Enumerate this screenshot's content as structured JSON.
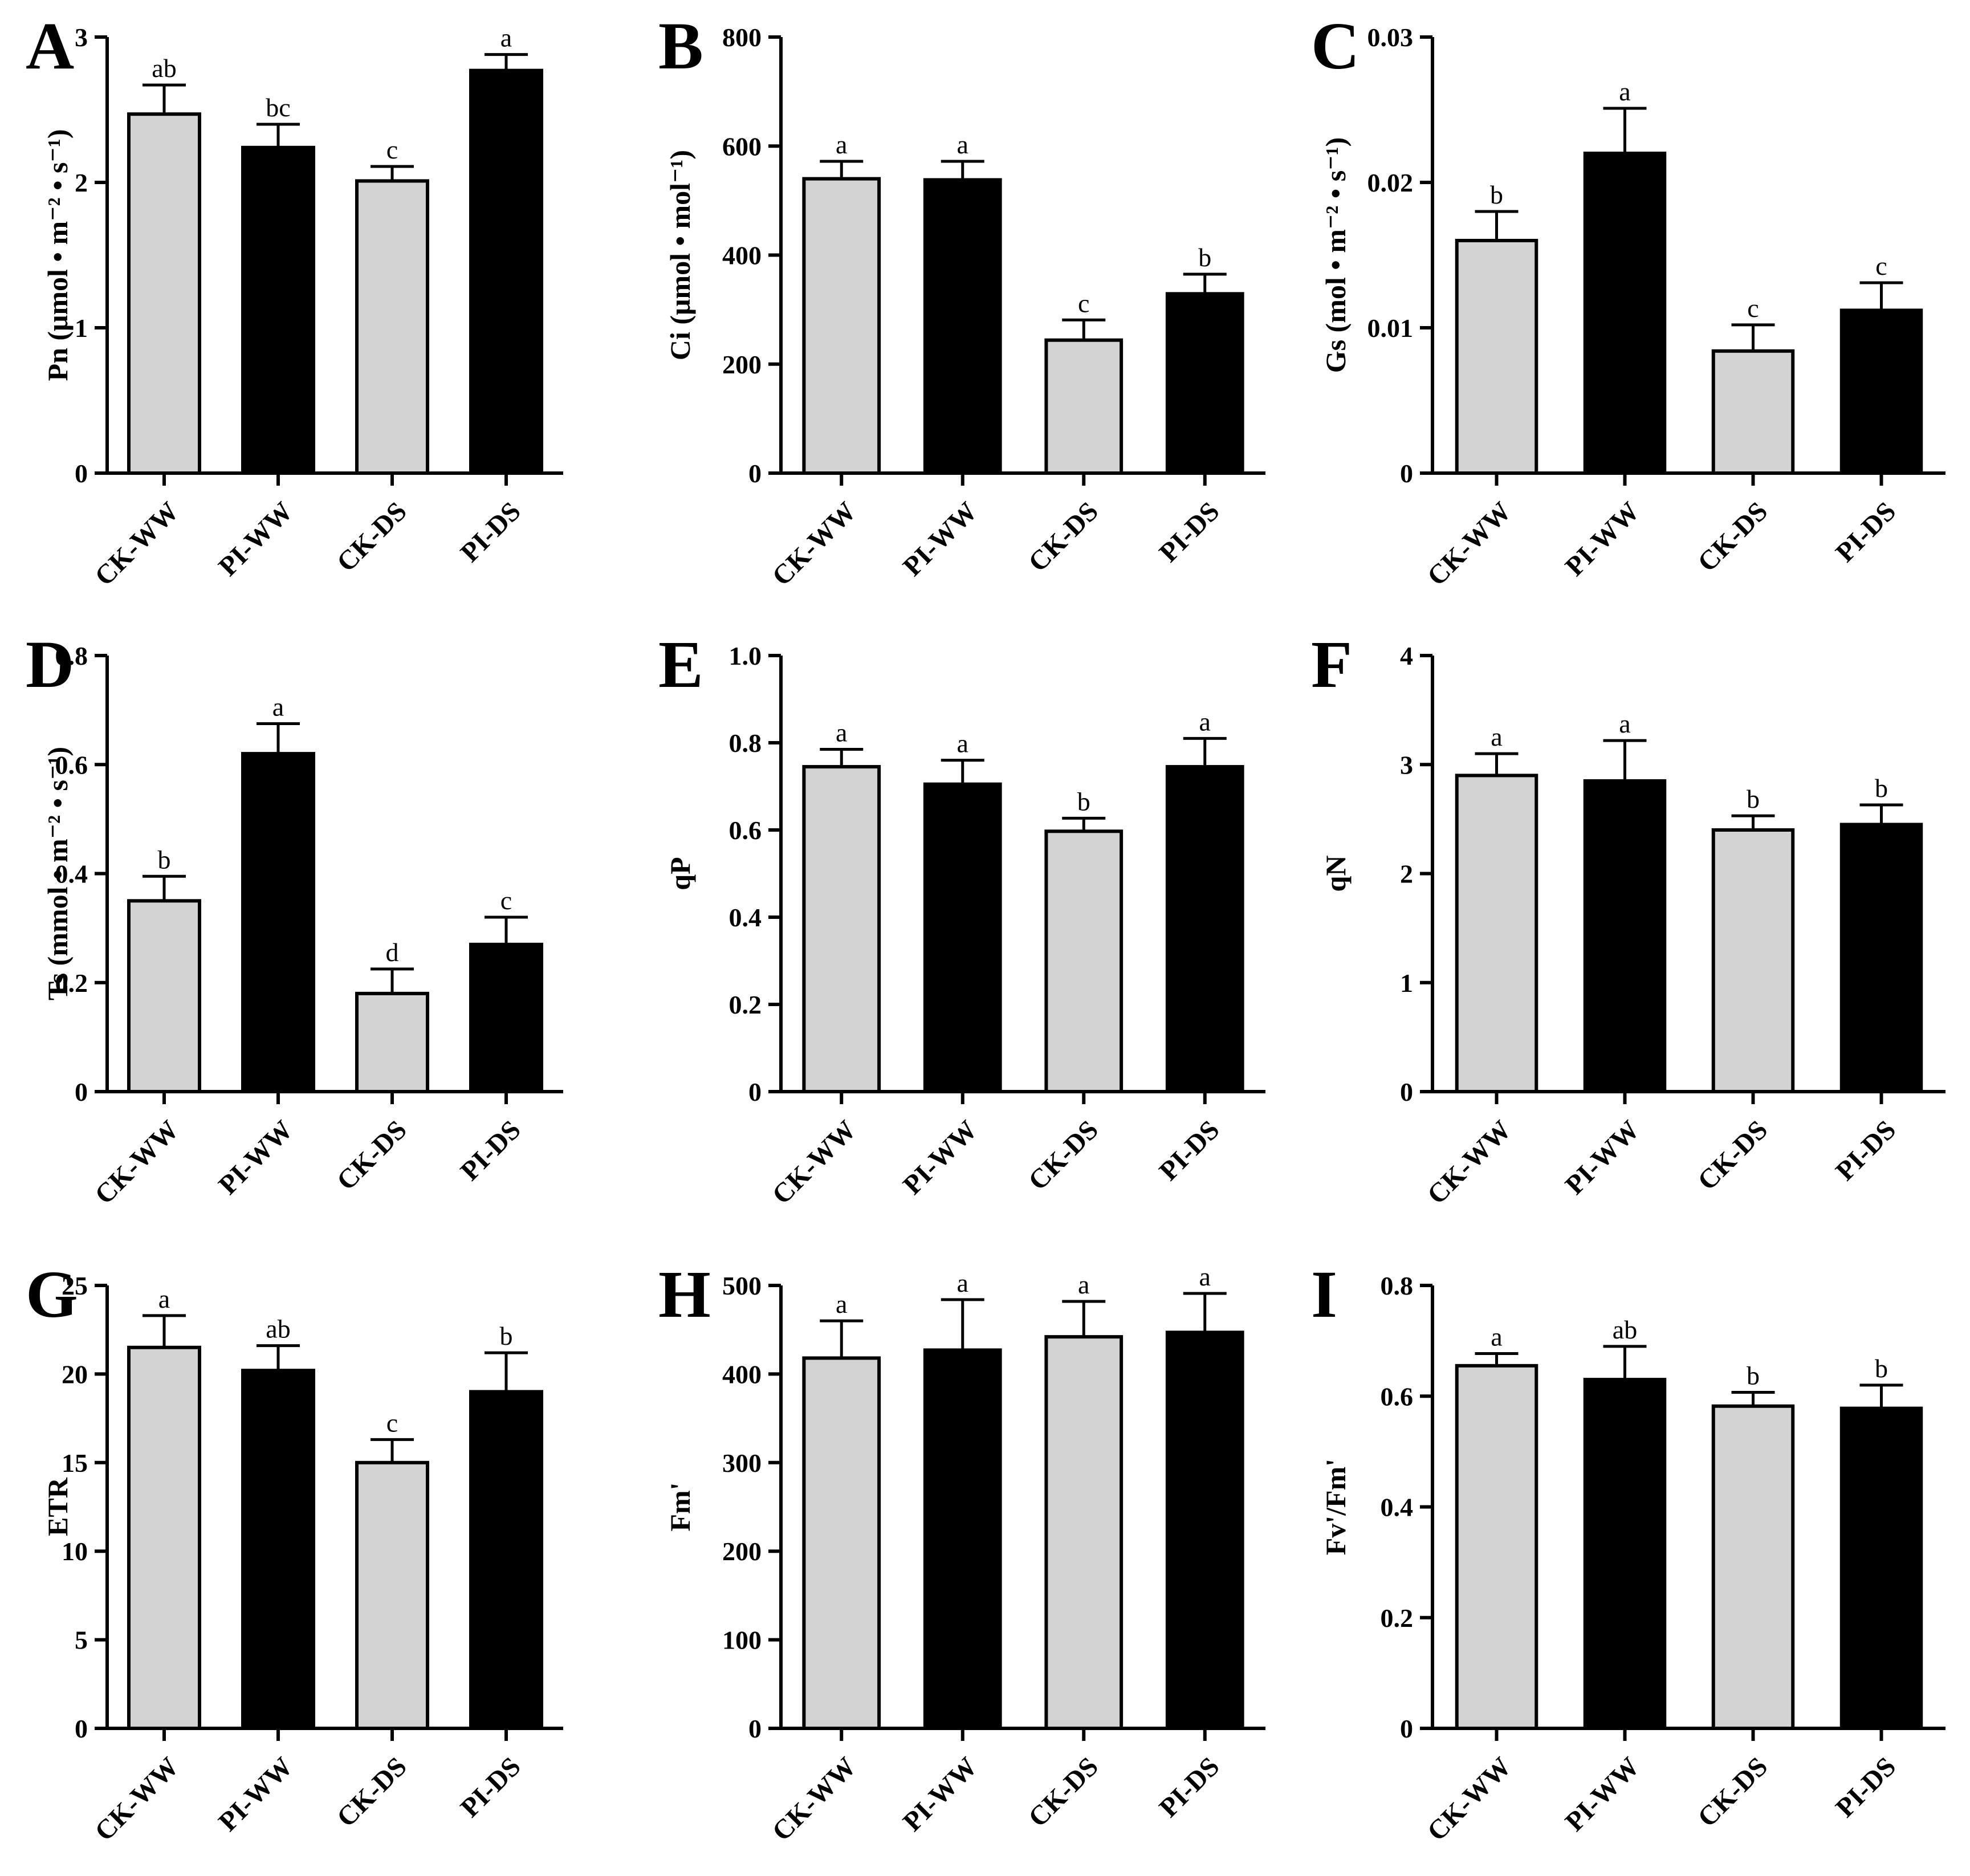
{
  "chart_data": [
    {
      "type": "bar",
      "panel_label": "A",
      "ylabel": "Pn (μmol • m⁻² • s⁻¹)",
      "categories": [
        "CK-WW",
        "PI-WW",
        "CK-DS",
        "PI-DS"
      ],
      "values": [
        2.47,
        2.24,
        2.01,
        2.77
      ],
      "errors": [
        0.2,
        0.16,
        0.1,
        0.11
      ],
      "letters": [
        "ab",
        "bc",
        "c",
        "a"
      ],
      "ylim": [
        0,
        3
      ],
      "yticks": [
        0,
        1,
        2,
        3
      ],
      "ytick_labels": [
        "0",
        "1",
        "2",
        "3"
      ]
    },
    {
      "type": "bar",
      "panel_label": "B",
      "ylabel": "Ci (μmol • mol⁻¹)",
      "categories": [
        "CK-WW",
        "PI-WW",
        "CK-DS",
        "PI-DS"
      ],
      "values": [
        540,
        538,
        244,
        329
      ],
      "errors": [
        32,
        34,
        37,
        36
      ],
      "letters": [
        "a",
        "a",
        "c",
        "b"
      ],
      "ylim": [
        0,
        800
      ],
      "yticks": [
        0,
        200,
        400,
        600,
        800
      ],
      "ytick_labels": [
        "0",
        "200",
        "400",
        "600",
        "800"
      ]
    },
    {
      "type": "bar",
      "panel_label": "C",
      "ylabel": "Gs (mol • m⁻² • s⁻¹)",
      "categories": [
        "CK-WW",
        "PI-WW",
        "CK-DS",
        "PI-DS"
      ],
      "values": [
        0.016,
        0.022,
        0.0084,
        0.0112
      ],
      "errors": [
        0.002,
        0.0031,
        0.0018,
        0.0019
      ],
      "letters": [
        "b",
        "a",
        "c",
        "c"
      ],
      "ylim": [
        0,
        0.03
      ],
      "yticks": [
        0,
        0.01,
        0.02,
        0.03
      ],
      "ytick_labels": [
        "0",
        "0.01",
        "0.02",
        "0.03"
      ]
    },
    {
      "type": "bar",
      "panel_label": "D",
      "ylabel": "Ts (mmol • m⁻² • s⁻¹)",
      "categories": [
        "CK-WW",
        "PI-WW",
        "CK-DS",
        "PI-DS"
      ],
      "values": [
        0.35,
        0.62,
        0.18,
        0.27
      ],
      "errors": [
        0.045,
        0.055,
        0.045,
        0.05
      ],
      "letters": [
        "b",
        "a",
        "d",
        "c"
      ],
      "ylim": [
        0,
        0.8
      ],
      "yticks": [
        0,
        0.2,
        0.4,
        0.6,
        0.8
      ],
      "ytick_labels": [
        "0",
        "0.2",
        "0.4",
        "0.6",
        "0.8"
      ]
    },
    {
      "type": "bar",
      "panel_label": "E",
      "ylabel": "qP",
      "categories": [
        "CK-WW",
        "PI-WW",
        "CK-DS",
        "PI-DS"
      ],
      "values": [
        0.745,
        0.705,
        0.597,
        0.745
      ],
      "errors": [
        0.04,
        0.055,
        0.03,
        0.065
      ],
      "letters": [
        "a",
        "a",
        "b",
        "a"
      ],
      "ylim": [
        0,
        1.0
      ],
      "yticks": [
        0,
        0.2,
        0.4,
        0.6,
        0.8,
        1.0
      ],
      "ytick_labels": [
        "0",
        "0.2",
        "0.4",
        "0.6",
        "0.8",
        "1.0"
      ]
    },
    {
      "type": "bar",
      "panel_label": "F",
      "ylabel": "qN",
      "categories": [
        "CK-WW",
        "PI-WW",
        "CK-DS",
        "PI-DS"
      ],
      "values": [
        2.9,
        2.85,
        2.4,
        2.45
      ],
      "errors": [
        0.2,
        0.37,
        0.13,
        0.18
      ],
      "letters": [
        "a",
        "a",
        "b",
        "b"
      ],
      "ylim": [
        0,
        4
      ],
      "yticks": [
        0,
        1,
        2,
        3,
        4
      ],
      "ytick_labels": [
        "0",
        "1",
        "2",
        "3",
        "4"
      ]
    },
    {
      "type": "bar",
      "panel_label": "G",
      "ylabel": "ETR",
      "categories": [
        "CK-WW",
        "PI-WW",
        "CK-DS",
        "PI-DS"
      ],
      "values": [
        21.5,
        20.2,
        15.0,
        19.0
      ],
      "errors": [
        1.8,
        1.4,
        1.3,
        2.2
      ],
      "letters": [
        "a",
        "ab",
        "c",
        "b"
      ],
      "ylim": [
        0,
        25
      ],
      "yticks": [
        0,
        5,
        10,
        15,
        20,
        25
      ],
      "ytick_labels": [
        "0",
        "5",
        "10",
        "15",
        "20",
        "25"
      ]
    },
    {
      "type": "bar",
      "panel_label": "H",
      "ylabel": "Fm'",
      "categories": [
        "CK-WW",
        "PI-WW",
        "CK-DS",
        "PI-DS"
      ],
      "values": [
        418,
        427,
        442,
        447
      ],
      "errors": [
        42,
        57,
        40,
        44
      ],
      "letters": [
        "a",
        "a",
        "a",
        "a"
      ],
      "ylim": [
        0,
        500
      ],
      "yticks": [
        0,
        100,
        200,
        300,
        400,
        500
      ],
      "ytick_labels": [
        "0",
        "100",
        "200",
        "300",
        "400",
        "500"
      ]
    },
    {
      "type": "bar",
      "panel_label": "I",
      "ylabel": "Fv'/Fm'",
      "categories": [
        "CK-WW",
        "PI-WW",
        "CK-DS",
        "PI-DS"
      ],
      "values": [
        0.655,
        0.63,
        0.582,
        0.578
      ],
      "errors": [
        0.022,
        0.06,
        0.025,
        0.042
      ],
      "letters": [
        "a",
        "ab",
        "b",
        "b"
      ],
      "ylim": [
        0,
        0.8
      ],
      "yticks": [
        0,
        0.2,
        0.4,
        0.6,
        0.8
      ],
      "ytick_labels": [
        "0",
        "0.2",
        "0.4",
        "0.6",
        "0.8"
      ]
    }
  ],
  "colors": {
    "ck_fill": "#d3d3d3",
    "pi_fill": "#000000",
    "outline": "#000000"
  }
}
